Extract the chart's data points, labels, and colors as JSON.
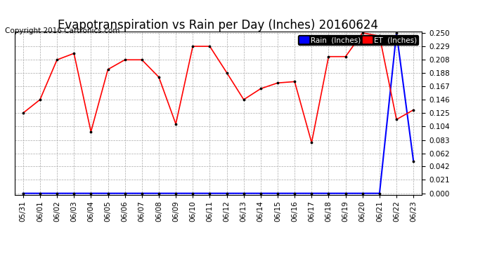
{
  "title": "Evapotranspiration vs Rain per Day (Inches) 20160624",
  "copyright": "Copyright 2016 Cartronics.com",
  "dates": [
    "05/31",
    "06/01",
    "06/02",
    "06/03",
    "06/04",
    "06/05",
    "06/06",
    "06/07",
    "06/08",
    "06/09",
    "06/10",
    "06/11",
    "06/12",
    "06/13",
    "06/14",
    "06/15",
    "06/16",
    "06/17",
    "06/18",
    "06/19",
    "06/20",
    "06/21",
    "06/22",
    "06/23"
  ],
  "et_values": [
    0.125,
    0.146,
    0.208,
    0.218,
    0.096,
    0.193,
    0.208,
    0.208,
    0.181,
    0.108,
    0.229,
    0.229,
    0.188,
    0.146,
    0.163,
    0.172,
    0.174,
    0.079,
    0.213,
    0.213,
    0.25,
    0.245,
    0.115,
    0.13
  ],
  "rain_values": [
    0.0,
    0.0,
    0.0,
    0.0,
    0.0,
    0.0,
    0.0,
    0.0,
    0.0,
    0.0,
    0.0,
    0.0,
    0.0,
    0.0,
    0.0,
    0.0,
    0.0,
    0.0,
    0.0,
    0.0,
    0.0,
    0.0,
    0.25,
    0.05
  ],
  "ylim": [
    0.0,
    0.25
  ],
  "yticks": [
    0.0,
    0.021,
    0.042,
    0.062,
    0.083,
    0.104,
    0.125,
    0.146,
    0.167,
    0.188,
    0.208,
    0.229,
    0.25
  ],
  "et_color": "red",
  "rain_color": "blue",
  "bg_color": "#ffffff",
  "plot_bg_color": "#ffffff",
  "grid_color": "#aaaaaa",
  "title_fontsize": 12,
  "copyright_fontsize": 7.5,
  "legend_fontsize": 7.5,
  "tick_fontsize": 7.5
}
